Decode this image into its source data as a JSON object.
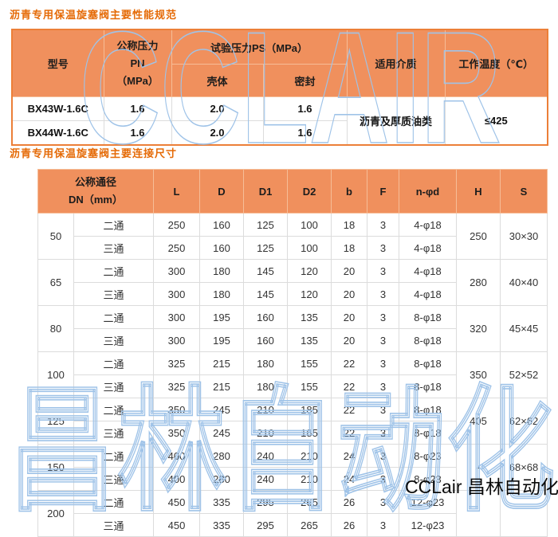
{
  "watermark": {
    "outline_top": "CCLAIR",
    "outline_bottom": "昌林自动化",
    "corner_text": "CCLair 昌林自动化",
    "outline_color": "#9fc3e8"
  },
  "colors": {
    "header_bg": "#f0905d",
    "table1_border": "#ec7f38",
    "title_color": "#e56a06"
  },
  "section1": {
    "title": "沥青专用保温旋塞阀主要性能规范",
    "table": {
      "headers": {
        "model": "型号",
        "pn_line1": "公称压力",
        "pn_line2": "PN",
        "pn_line3": "（MPa）",
        "test_pressure": "试验压力PS（MPa）",
        "shell": "壳体",
        "seal": "密封",
        "medium": "适用介质",
        "temp": "工作温度（℃）"
      },
      "rows": [
        {
          "model": "BX43W-1.6C",
          "pn": "1.6",
          "shell": "2.0",
          "seal": "1.6"
        },
        {
          "model": "BX44W-1.6C",
          "pn": "1.6",
          "shell": "2.0",
          "seal": "1.6"
        }
      ],
      "medium_value": "沥青及厚质油类",
      "temp_value": "≤425"
    }
  },
  "section2": {
    "title": "沥青专用保温旋塞阀主要连接尺寸",
    "table": {
      "headers": {
        "dn_line1": "公称通径",
        "dn_line2": "DN（mm）",
        "cols": [
          "L",
          "D",
          "D1",
          "D2",
          "b",
          "F",
          "n-φd",
          "H",
          "S"
        ]
      },
      "groups": [
        {
          "dn": "50",
          "h": "250",
          "s": "30×30",
          "rows": [
            [
              "二通",
              "250",
              "160",
              "125",
              "100",
              "18",
              "3",
              "4-φ18"
            ],
            [
              "三通",
              "250",
              "160",
              "125",
              "100",
              "18",
              "3",
              "4-φ18"
            ]
          ]
        },
        {
          "dn": "65",
          "h": "280",
          "s": "40×40",
          "rows": [
            [
              "二通",
              "300",
              "180",
              "145",
              "120",
              "20",
              "3",
              "4-φ18"
            ],
            [
              "三通",
              "300",
              "180",
              "145",
              "120",
              "20",
              "3",
              "4-φ18"
            ]
          ]
        },
        {
          "dn": "80",
          "h": "320",
          "s": "45×45",
          "rows": [
            [
              "二通",
              "300",
              "195",
              "160",
              "135",
              "20",
              "3",
              "8-φ18"
            ],
            [
              "三通",
              "300",
              "195",
              "160",
              "135",
              "20",
              "3",
              "8-φ18"
            ]
          ]
        },
        {
          "dn": "100",
          "h": "350",
          "s": "52×52",
          "rows": [
            [
              "二通",
              "325",
              "215",
              "180",
              "155",
              "22",
              "3",
              "8-φ18"
            ],
            [
              "三通",
              "325",
              "215",
              "180",
              "155",
              "22",
              "3",
              "8-φ18"
            ]
          ]
        },
        {
          "dn": "125",
          "h": "405",
          "s": "62×62",
          "rows": [
            [
              "二通",
              "350",
              "245",
              "210",
              "185",
              "22",
              "3",
              "8-φ18"
            ],
            [
              "三通",
              "350",
              "245",
              "210",
              "185",
              "22",
              "3",
              "8-φ18"
            ]
          ]
        },
        {
          "dn": "150",
          "h": "-",
          "s": "68×68",
          "rows": [
            [
              "二通",
              "400",
              "280",
              "240",
              "210",
              "24",
              "3",
              "8-φ23"
            ],
            [
              "三通",
              "400",
              "280",
              "240",
              "210",
              "24",
              "3",
              "8-φ23"
            ]
          ]
        },
        {
          "dn": "200",
          "h": "",
          "s": "",
          "rows": [
            [
              "二通",
              "450",
              "335",
              "295",
              "265",
              "26",
              "3",
              "12-φ23"
            ],
            [
              "三通",
              "450",
              "335",
              "295",
              "265",
              "26",
              "3",
              "12-φ23"
            ]
          ]
        }
      ]
    }
  }
}
